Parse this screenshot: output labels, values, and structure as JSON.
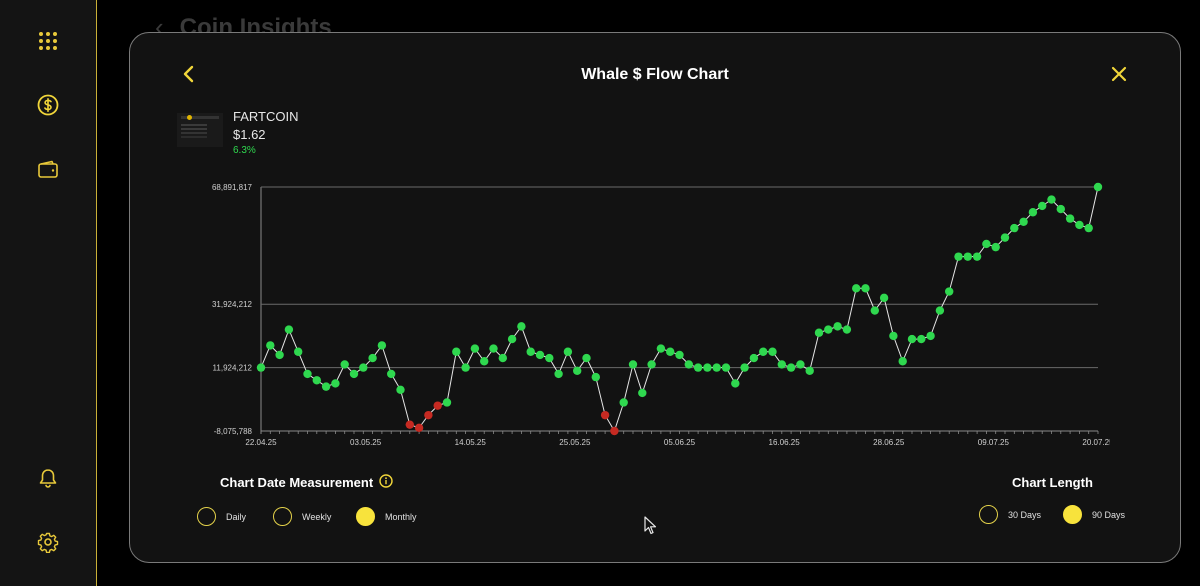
{
  "background_page": {
    "title": "Coin Insights"
  },
  "sidebar": {
    "items": [
      {
        "icon": "grid-icon"
      },
      {
        "icon": "dollar-icon"
      },
      {
        "icon": "wallet-icon"
      },
      {
        "icon": "bell-icon"
      },
      {
        "icon": "gear-icon"
      }
    ]
  },
  "modal": {
    "title": "Whale $ Flow Chart"
  },
  "coin": {
    "name": "FARTCOIN",
    "price": "$1.62",
    "change": "6.3%"
  },
  "colors": {
    "accent": "#f8e33c",
    "positive": "#2fd84f",
    "negative": "#c62a22"
  },
  "chart_data": {
    "type": "line",
    "y_ticks": [
      "68,891,817",
      "31,924,212",
      "11,924,212",
      "-8,075,788"
    ],
    "x_ticks": [
      "22.04.25",
      "03.05.25",
      "14.05.25",
      "25.05.25",
      "05.06.25",
      "16.06.25",
      "28.06.25",
      "09.07.25",
      "20.07.25"
    ],
    "ylim": [
      -8075788,
      68891817
    ],
    "grid": "horizontal",
    "points_color_rule": "green when y >= 0, red when y < 0",
    "y": [
      11924212,
      18924212,
      15924212,
      23924212,
      16924212,
      9924212,
      7924212,
      5924212,
      6924212,
      12924212,
      9924212,
      11924212,
      14924212,
      18924212,
      9924212,
      4924212,
      -6075788,
      -7075788,
      -3075788,
      -75788,
      924212,
      16924212,
      11924212,
      17924212,
      13924212,
      17924212,
      14924212,
      20924212,
      24924212,
      16924212,
      15924212,
      14924212,
      9924212,
      16924212,
      10924212,
      14924212,
      8924212,
      -3075788,
      -8075788,
      924212,
      12924212,
      3924212,
      12924212,
      17924212,
      16924212,
      15924212,
      12924212,
      11924212,
      11924212,
      11924212,
      11924212,
      6924212,
      11924212,
      14924212,
      16924212,
      16924212,
      12924212,
      11924212,
      12924212,
      10924212,
      22924212,
      23924212,
      24924212,
      23924212,
      36924212,
      36924212,
      29924212,
      33924212,
      21924212,
      13924212,
      20924212,
      20924212,
      21924212,
      29924212,
      35924212,
      46924212,
      46924212,
      46924212,
      50924212,
      49924212,
      52924212,
      55924212,
      57924212,
      60924212,
      62924212,
      64924212,
      61924212,
      58924212,
      56924212,
      55924212,
      68891817
    ]
  },
  "controls": {
    "date_measurement": {
      "title": "Chart Date Measurement",
      "options": [
        "Daily",
        "Weekly",
        "Monthly"
      ],
      "selected": "Monthly"
    },
    "chart_length": {
      "title": "Chart Length",
      "options": [
        "30 Days",
        "90 Days"
      ],
      "selected": "90 Days"
    }
  }
}
